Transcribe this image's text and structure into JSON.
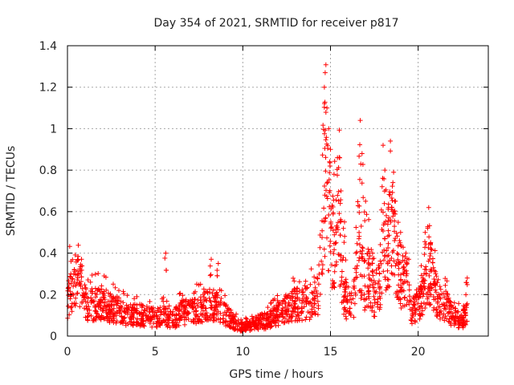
{
  "chart_data": {
    "type": "scatter",
    "title": "Day 354 of 2021, SRMTID for receiver p817",
    "xlabel": "GPS time / hours",
    "ylabel": "SRMTID / TECUs",
    "xlim": [
      0,
      24
    ],
    "ylim": [
      0,
      1.4
    ],
    "xticks": [
      0,
      5,
      10,
      15,
      20
    ],
    "yticks": [
      0,
      0.2,
      0.4,
      0.6,
      0.8,
      1,
      1.2,
      1.4
    ],
    "xtick_labels": [
      "0",
      "5",
      "10",
      "15",
      "20"
    ],
    "ytick_labels": [
      "0",
      "0.2",
      "0.4",
      "0.6",
      "0.8",
      "1",
      "1.2",
      "1.4"
    ],
    "grid": true,
    "marker": "+",
    "series": [
      {
        "name": "SRMTID",
        "color": "#ff0000",
        "profile": [
          [
            0.0,
            0.18
          ],
          [
            0.2,
            0.26
          ],
          [
            0.5,
            0.28
          ],
          [
            0.8,
            0.25
          ],
          [
            1.0,
            0.17
          ],
          [
            1.5,
            0.16
          ],
          [
            2.0,
            0.17
          ],
          [
            2.5,
            0.14
          ],
          [
            3.0,
            0.13
          ],
          [
            3.5,
            0.1
          ],
          [
            4.0,
            0.11
          ],
          [
            4.5,
            0.1
          ],
          [
            5.0,
            0.09
          ],
          [
            5.5,
            0.1
          ],
          [
            6.0,
            0.08
          ],
          [
            6.5,
            0.12
          ],
          [
            7.0,
            0.12
          ],
          [
            7.5,
            0.14
          ],
          [
            8.0,
            0.16
          ],
          [
            8.5,
            0.15
          ],
          [
            9.0,
            0.11
          ],
          [
            9.5,
            0.07
          ],
          [
            10.0,
            0.04
          ],
          [
            10.5,
            0.06
          ],
          [
            11.0,
            0.07
          ],
          [
            11.5,
            0.08
          ],
          [
            12.0,
            0.11
          ],
          [
            12.5,
            0.14
          ],
          [
            13.0,
            0.16
          ],
          [
            13.5,
            0.17
          ],
          [
            14.0,
            0.18
          ],
          [
            14.3,
            0.2
          ],
          [
            14.5,
            0.55
          ],
          [
            14.6,
            0.85
          ],
          [
            14.75,
            0.75
          ],
          [
            15.0,
            0.5
          ],
          [
            15.3,
            0.45
          ],
          [
            15.5,
            0.6
          ],
          [
            15.7,
            0.25
          ],
          [
            16.0,
            0.15
          ],
          [
            16.3,
            0.15
          ],
          [
            16.6,
            0.5
          ],
          [
            16.9,
            0.25
          ],
          [
            17.2,
            0.3
          ],
          [
            17.5,
            0.2
          ],
          [
            17.8,
            0.25
          ],
          [
            18.0,
            0.5
          ],
          [
            18.3,
            0.45
          ],
          [
            18.5,
            0.55
          ],
          [
            18.8,
            0.35
          ],
          [
            19.0,
            0.25
          ],
          [
            19.3,
            0.3
          ],
          [
            19.6,
            0.12
          ],
          [
            20.0,
            0.15
          ],
          [
            20.3,
            0.2
          ],
          [
            20.6,
            0.35
          ],
          [
            20.9,
            0.25
          ],
          [
            21.2,
            0.18
          ],
          [
            21.6,
            0.15
          ],
          [
            22.0,
            0.1
          ],
          [
            22.5,
            0.08
          ],
          [
            22.8,
            0.12
          ]
        ],
        "spikes": [
          [
            14.7,
            1.27
          ],
          [
            14.65,
            1.2
          ],
          [
            14.8,
            1.1
          ],
          [
            14.9,
            1.0
          ],
          [
            15.0,
            0.9
          ],
          [
            15.2,
            0.78
          ],
          [
            15.4,
            0.86
          ],
          [
            15.6,
            0.7
          ],
          [
            15.8,
            0.55
          ],
          [
            16.7,
            1.04
          ],
          [
            16.8,
            0.88
          ],
          [
            17.0,
            0.65
          ],
          [
            17.4,
            0.4
          ],
          [
            17.8,
            0.3
          ],
          [
            18.0,
            0.92
          ],
          [
            18.1,
            0.8
          ],
          [
            18.3,
            0.62
          ],
          [
            18.6,
            0.79
          ],
          [
            18.7,
            0.65
          ],
          [
            19.0,
            0.5
          ],
          [
            19.3,
            0.4
          ],
          [
            20.6,
            0.62
          ],
          [
            20.4,
            0.5
          ],
          [
            21.0,
            0.3
          ],
          [
            22.8,
            0.28
          ],
          [
            5.6,
            0.4
          ],
          [
            8.2,
            0.37
          ],
          [
            8.6,
            0.35
          ],
          [
            0.2,
            0.36
          ],
          [
            0.8,
            0.37
          ]
        ],
        "n_points": 1900,
        "seed": 354
      }
    ]
  }
}
